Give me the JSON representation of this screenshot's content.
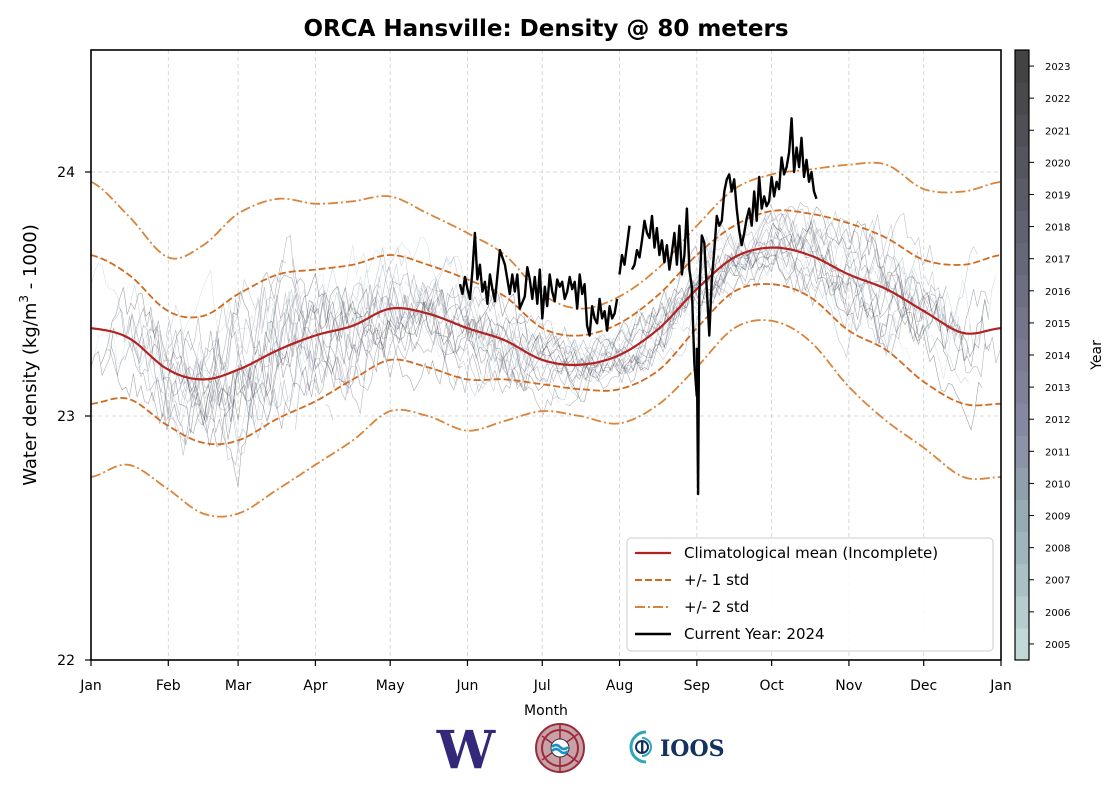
{
  "chart_data": {
    "type": "line",
    "title": "ORCA Hansville: Density @ 80 meters",
    "xlabel": "Month",
    "ylabel_prefix": "Water density (kg/m",
    "ylabel_sup": "3",
    "ylabel_suffix": " - 1000)",
    "ylim": [
      22,
      24.5
    ],
    "yticks": [
      22,
      23,
      24
    ],
    "xlim_day": [
      0,
      365
    ],
    "xticks": [
      {
        "label": "Jan",
        "day": 0
      },
      {
        "label": "Feb",
        "day": 31
      },
      {
        "label": "Mar",
        "day": 59
      },
      {
        "label": "Apr",
        "day": 90
      },
      {
        "label": "May",
        "day": 120
      },
      {
        "label": "Jun",
        "day": 151
      },
      {
        "label": "Jul",
        "day": 181
      },
      {
        "label": "Aug",
        "day": 212
      },
      {
        "label": "Sep",
        "day": 243
      },
      {
        "label": "Oct",
        "day": 273
      },
      {
        "label": "Nov",
        "day": 304
      },
      {
        "label": "Dec",
        "day": 334
      },
      {
        "label": "Jan",
        "day": 365
      }
    ],
    "grid": true,
    "legend_position": "lower-right",
    "legend": [
      {
        "label": "Climatological mean (Incomplete)",
        "color": "#b22222",
        "style": "solid"
      },
      {
        "label": "+/- 1 std",
        "color": "#d2691e",
        "style": "dashed"
      },
      {
        "label": "+/- 2 std",
        "color": "#d9843a",
        "style": "dashdot"
      },
      {
        "label": "Current Year: 2024",
        "color": "#000000",
        "style": "solid"
      }
    ],
    "series": [
      {
        "name": "Climatological mean (Incomplete)",
        "x_day": [
          0,
          15,
          31,
          45,
          59,
          75,
          90,
          105,
          120,
          135,
          151,
          166,
          181,
          196,
          212,
          228,
          243,
          258,
          273,
          288,
          304,
          319,
          334,
          350,
          365
        ],
        "y": [
          23.36,
          23.32,
          23.19,
          23.15,
          23.19,
          23.27,
          23.33,
          23.37,
          23.44,
          23.42,
          23.36,
          23.31,
          23.23,
          23.21,
          23.25,
          23.36,
          23.52,
          23.65,
          23.69,
          23.66,
          23.58,
          23.52,
          23.43,
          23.34,
          23.36
        ]
      },
      {
        "name": "+1 std",
        "x_day": [
          0,
          15,
          31,
          45,
          59,
          75,
          90,
          105,
          120,
          135,
          151,
          166,
          181,
          196,
          212,
          228,
          243,
          258,
          273,
          288,
          304,
          319,
          334,
          350,
          365
        ],
        "y": [
          23.66,
          23.58,
          23.43,
          23.41,
          23.5,
          23.58,
          23.6,
          23.62,
          23.66,
          23.62,
          23.56,
          23.49,
          23.36,
          23.33,
          23.38,
          23.5,
          23.66,
          23.78,
          23.84,
          23.83,
          23.79,
          23.73,
          23.64,
          23.62,
          23.66
        ]
      },
      {
        "name": "-1 std",
        "x_day": [
          0,
          15,
          31,
          45,
          59,
          75,
          90,
          105,
          120,
          135,
          151,
          166,
          181,
          196,
          212,
          228,
          243,
          258,
          273,
          288,
          304,
          319,
          334,
          350,
          365
        ],
        "y": [
          23.05,
          23.07,
          22.96,
          22.89,
          22.9,
          22.99,
          23.06,
          23.15,
          23.23,
          23.2,
          23.15,
          23.15,
          23.13,
          23.11,
          23.11,
          23.19,
          23.36,
          23.51,
          23.54,
          23.49,
          23.35,
          23.27,
          23.14,
          23.05,
          23.05
        ]
      },
      {
        "name": "+2 std",
        "x_day": [
          0,
          15,
          31,
          45,
          59,
          75,
          90,
          105,
          120,
          135,
          151,
          166,
          181,
          196,
          212,
          228,
          243,
          258,
          273,
          288,
          304,
          319,
          334,
          350,
          365
        ],
        "y": [
          23.96,
          23.82,
          23.65,
          23.7,
          23.83,
          23.89,
          23.87,
          23.88,
          23.9,
          23.83,
          23.75,
          23.66,
          23.5,
          23.44,
          23.49,
          23.61,
          23.78,
          23.93,
          23.99,
          24.01,
          24.03,
          24.03,
          23.93,
          23.92,
          23.96
        ]
      },
      {
        "name": "-2 std",
        "x_day": [
          0,
          15,
          31,
          45,
          59,
          75,
          90,
          105,
          120,
          135,
          151,
          166,
          181,
          196,
          212,
          228,
          243,
          258,
          273,
          288,
          304,
          319,
          334,
          350,
          365
        ],
        "y": [
          22.75,
          22.8,
          22.7,
          22.6,
          22.6,
          22.7,
          22.8,
          22.9,
          23.02,
          23.0,
          22.94,
          22.98,
          23.02,
          23.0,
          22.97,
          23.05,
          23.2,
          23.36,
          23.39,
          23.31,
          23.12,
          22.98,
          22.87,
          22.75,
          22.75
        ]
      },
      {
        "name": "Current Year: 2024",
        "segments": [
          {
            "x_day": [
              148,
              149,
              150,
              151,
              152,
              153,
              154,
              155,
              156,
              157,
              158,
              159,
              160,
              161,
              162,
              164,
              166,
              168,
              169,
              170,
              171,
              172,
              174,
              175,
              176,
              177,
              178,
              179,
              180,
              181,
              182,
              183,
              184,
              185,
              186,
              187,
              188,
              189,
              190,
              191,
              192,
              193,
              194,
              195,
              196,
              197,
              198,
              199,
              200,
              201,
              202,
              203,
              204,
              205,
              206,
              207,
              208,
              209,
              210,
              211
            ],
            "y": [
              23.54,
              23.5,
              23.57,
              23.52,
              23.48,
              23.6,
              23.75,
              23.56,
              23.62,
              23.51,
              23.55,
              23.46,
              23.58,
              23.52,
              23.47,
              23.68,
              23.62,
              23.5,
              23.58,
              23.51,
              23.58,
              23.44,
              23.49,
              23.61,
              23.56,
              23.48,
              23.57,
              23.46,
              23.6,
              23.4,
              23.53,
              23.45,
              23.58,
              23.51,
              23.47,
              23.56,
              23.53,
              23.55,
              23.48,
              23.51,
              23.57,
              23.52,
              23.55,
              23.44,
              23.58,
              23.5,
              23.54,
              23.37,
              23.33,
              23.45,
              23.4,
              23.38,
              23.48,
              23.4,
              23.43,
              23.35,
              23.45,
              23.4,
              23.42,
              23.48
            ]
          },
          {
            "x_day": [
              212,
              213,
              214,
              215,
              216
            ],
            "y": [
              23.58,
              23.66,
              23.62,
              23.7,
              23.78
            ]
          },
          {
            "x_day": [
              217,
              218,
              219,
              220,
              221,
              222,
              223,
              224,
              225,
              226,
              227,
              228,
              229,
              230,
              231,
              232,
              233,
              234,
              235,
              236,
              237,
              238,
              239,
              240,
              241,
              242,
              243
            ],
            "y": [
              23.6,
              23.62,
              23.68,
              23.65,
              23.72,
              23.8,
              23.75,
              23.73,
              23.82,
              23.69,
              23.77,
              23.66,
              23.72,
              23.63,
              23.7,
              23.6,
              23.67,
              23.75,
              23.62,
              23.78,
              23.58,
              23.66,
              23.85,
              23.6,
              23.53,
              23.22,
              23.08
            ]
          },
          {
            "x_day": [
              243,
              243.5,
              244,
              245,
              246,
              247,
              248,
              249,
              250,
              251,
              252,
              253,
              254,
              255,
              256,
              257,
              258,
              259,
              260,
              261,
              262,
              263,
              264,
              265,
              266,
              267,
              268,
              269,
              270,
              271,
              272,
              273,
              274,
              275,
              276,
              277,
              278,
              279,
              280,
              281,
              282,
              283,
              284,
              285,
              286,
              287,
              288,
              289,
              290,
              291
            ],
            "y": [
              23.28,
              22.68,
              23.5,
              23.74,
              23.71,
              23.52,
              23.33,
              23.56,
              23.68,
              23.82,
              23.78,
              23.8,
              23.92,
              23.97,
              23.99,
              23.92,
              23.97,
              23.85,
              23.76,
              23.7,
              23.75,
              23.81,
              23.85,
              23.78,
              23.92,
              23.8,
              23.98,
              23.85,
              23.9,
              23.86,
              23.88,
              23.98,
              23.9,
              23.96,
              23.93,
              24.06,
              23.99,
              24.02,
              24.08,
              24.22,
              24.0,
              24.1,
              24.02,
              24.14,
              23.98,
              24.05,
              23.96,
              24.0,
              23.92,
              23.89
            ]
          }
        ]
      }
    ],
    "historical_years": {
      "years": [
        2005,
        2006,
        2007,
        2008,
        2009,
        2010,
        2011,
        2012,
        2013,
        2014,
        2015,
        2016,
        2017,
        2018,
        2019,
        2020,
        2021,
        2022,
        2023
      ],
      "note": "thin background traces colored by year"
    },
    "colorbar": {
      "label": "Year",
      "ticks": [
        2005,
        2006,
        2007,
        2008,
        2009,
        2010,
        2011,
        2012,
        2013,
        2014,
        2015,
        2016,
        2017,
        2018,
        2019,
        2020,
        2021,
        2022,
        2023
      ],
      "colors": [
        "#c3d9d8",
        "#b6cccd",
        "#aac1c4",
        "#a0b5bb",
        "#97abb3",
        "#8f9fac",
        "#8b93a8",
        "#8688a2",
        "#818099",
        "#7b7a92",
        "#75748b",
        "#6e6d82",
        "#67677a",
        "#616171",
        "#5b5b68",
        "#55555e",
        "#4f4f55",
        "#49494c",
        "#434343"
      ]
    }
  },
  "logos": [
    {
      "name": "University of Washington",
      "text": "W"
    },
    {
      "name": "NANOOS seal",
      "text": ""
    },
    {
      "name": "IOOS",
      "text": "IOOS"
    }
  ]
}
